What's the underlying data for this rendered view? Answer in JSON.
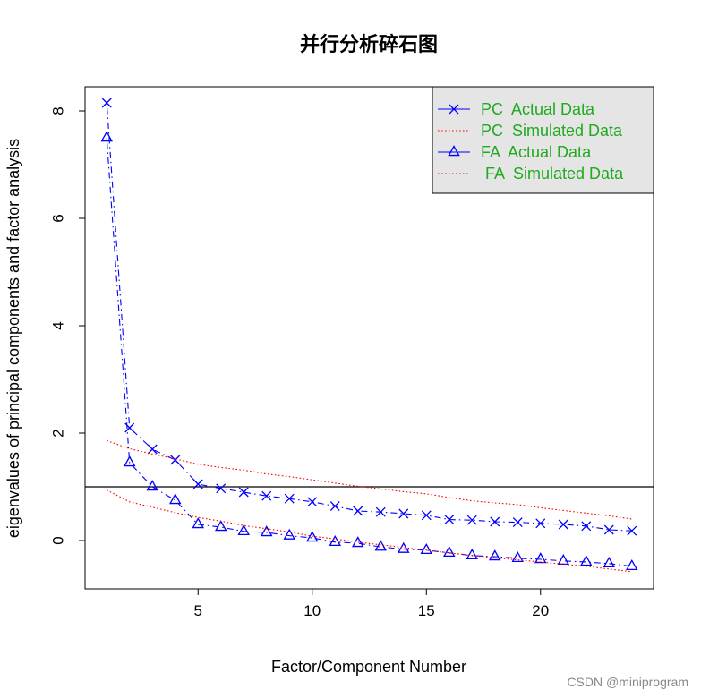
{
  "chart_data": {
    "type": "line",
    "title": "并行分析碎石图",
    "xlabel": "Factor/Component Number",
    "ylabel": "eigenvalues of principal components and factor analysis",
    "xlim": [
      0.05,
      24.95
    ],
    "ylim": [
      -0.9,
      8.45
    ],
    "xticks": [
      5,
      10,
      15,
      20
    ],
    "yticks": [
      0,
      2,
      4,
      6,
      8
    ],
    "reference_line": 1,
    "legend_position": "top-right",
    "x": [
      1,
      2,
      3,
      4,
      5,
      6,
      7,
      8,
      9,
      10,
      11,
      12,
      13,
      14,
      15,
      16,
      17,
      18,
      19,
      20,
      21,
      22,
      23,
      24
    ],
    "series": [
      {
        "name": "PC  Actual Data",
        "color": "#0000ff",
        "marker": "x",
        "line": "dash-dot",
        "values": [
          8.15,
          2.1,
          1.7,
          1.5,
          1.05,
          0.97,
          0.9,
          0.83,
          0.78,
          0.72,
          0.64,
          0.55,
          0.53,
          0.5,
          0.47,
          0.39,
          0.38,
          0.35,
          0.34,
          0.32,
          0.3,
          0.27,
          0.2,
          0.18
        ]
      },
      {
        "name": "PC  Simulated Data",
        "color": "#ff0000",
        "marker": "none",
        "line": "dotted",
        "values": [
          1.86,
          1.71,
          1.61,
          1.52,
          1.42,
          1.36,
          1.31,
          1.24,
          1.19,
          1.13,
          1.07,
          1.01,
          0.96,
          0.91,
          0.87,
          0.8,
          0.74,
          0.7,
          0.67,
          0.61,
          0.56,
          0.51,
          0.46,
          0.4
        ]
      },
      {
        "name": "FA  Actual Data",
        "color": "#0000ff",
        "marker": "triangle",
        "line": "dash-dot",
        "values": [
          7.5,
          1.45,
          1.0,
          0.75,
          0.3,
          0.25,
          0.17,
          0.15,
          0.09,
          0.05,
          -0.03,
          -0.05,
          -0.12,
          -0.16,
          -0.18,
          -0.23,
          -0.28,
          -0.3,
          -0.33,
          -0.35,
          -0.38,
          -0.4,
          -0.43,
          -0.48
        ]
      },
      {
        "name": " FA  Simulated Data",
        "color": "#ff0000",
        "marker": "none",
        "line": "dotted",
        "values": [
          0.94,
          0.72,
          0.62,
          0.52,
          0.43,
          0.36,
          0.28,
          0.22,
          0.16,
          0.08,
          0.03,
          -0.03,
          -0.08,
          -0.13,
          -0.18,
          -0.23,
          -0.28,
          -0.32,
          -0.36,
          -0.4,
          -0.44,
          -0.48,
          -0.53,
          -0.58
        ]
      }
    ]
  },
  "watermark": "CSDN @miniprogram"
}
